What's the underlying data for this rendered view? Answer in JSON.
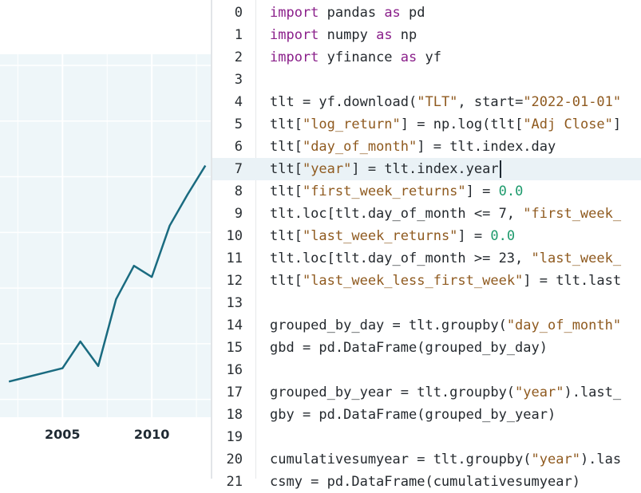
{
  "chart": {
    "x_tick_labels": [
      "2005",
      "2010"
    ],
    "line_color": "#1a6b80",
    "plot_background": "#eef6f9",
    "grid_color": "#ffffff",
    "chart_data": {
      "type": "line",
      "x": [
        2002,
        2003,
        2004,
        2005,
        2006,
        2007,
        2008,
        2009,
        2010,
        2011,
        2012,
        2013
      ],
      "series": [
        {
          "values": [
            0.08,
            0.1,
            0.12,
            0.14,
            0.26,
            0.15,
            0.45,
            0.6,
            0.55,
            0.78,
            0.92,
            1.05
          ]
        }
      ],
      "xlim": [
        2001.5,
        2013.3
      ],
      "ylim": [
        -0.08,
        1.55
      ],
      "grid": true
    }
  },
  "editor": {
    "active_line": 7,
    "lines": [
      {
        "number": "0",
        "tokens": [
          {
            "t": "import",
            "c": "kw"
          },
          {
            "t": " pandas ",
            "c": "plain"
          },
          {
            "t": "as",
            "c": "kw"
          },
          {
            "t": " pd",
            "c": "plain"
          }
        ]
      },
      {
        "number": "1",
        "tokens": [
          {
            "t": "import",
            "c": "kw"
          },
          {
            "t": " numpy ",
            "c": "plain"
          },
          {
            "t": "as",
            "c": "kw"
          },
          {
            "t": " np",
            "c": "plain"
          }
        ]
      },
      {
        "number": "2",
        "tokens": [
          {
            "t": "import",
            "c": "kw"
          },
          {
            "t": " yfinance ",
            "c": "plain"
          },
          {
            "t": "as",
            "c": "kw"
          },
          {
            "t": " yf",
            "c": "plain"
          }
        ]
      },
      {
        "number": "3",
        "tokens": []
      },
      {
        "number": "4",
        "tokens": [
          {
            "t": "tlt = yf.download(",
            "c": "plain"
          },
          {
            "t": "\"TLT\"",
            "c": "str"
          },
          {
            "t": ", start=",
            "c": "plain"
          },
          {
            "t": "\"2022-01-01\"",
            "c": "str"
          }
        ]
      },
      {
        "number": "5",
        "tokens": [
          {
            "t": "tlt[",
            "c": "plain"
          },
          {
            "t": "\"log_return\"",
            "c": "str"
          },
          {
            "t": "] = np.log(tlt[",
            "c": "plain"
          },
          {
            "t": "\"Adj Close\"",
            "c": "str"
          },
          {
            "t": "]",
            "c": "plain"
          }
        ]
      },
      {
        "number": "6",
        "tokens": [
          {
            "t": "tlt[",
            "c": "plain"
          },
          {
            "t": "\"day_of_month\"",
            "c": "str"
          },
          {
            "t": "] = tlt.index.day",
            "c": "plain"
          }
        ]
      },
      {
        "number": "7",
        "tokens": [
          {
            "t": "tlt[",
            "c": "plain"
          },
          {
            "t": "\"year\"",
            "c": "str"
          },
          {
            "t": "] = tlt.index.year",
            "c": "plain"
          }
        ],
        "cursor": true
      },
      {
        "number": "8",
        "tokens": [
          {
            "t": "tlt[",
            "c": "plain"
          },
          {
            "t": "\"first_week_returns\"",
            "c": "str"
          },
          {
            "t": "] = ",
            "c": "plain"
          },
          {
            "t": "0.0",
            "c": "num"
          }
        ]
      },
      {
        "number": "9",
        "tokens": [
          {
            "t": "tlt.loc[tlt.day_of_month <= 7, ",
            "c": "plain"
          },
          {
            "t": "\"first_week_",
            "c": "str"
          }
        ]
      },
      {
        "number": "10",
        "tokens": [
          {
            "t": "tlt[",
            "c": "plain"
          },
          {
            "t": "\"last_week_returns\"",
            "c": "str"
          },
          {
            "t": "] = ",
            "c": "plain"
          },
          {
            "t": "0.0",
            "c": "num"
          }
        ]
      },
      {
        "number": "11",
        "tokens": [
          {
            "t": "tlt.loc[tlt.day_of_month >= 23, ",
            "c": "plain"
          },
          {
            "t": "\"last_week_",
            "c": "str"
          }
        ]
      },
      {
        "number": "12",
        "tokens": [
          {
            "t": "tlt[",
            "c": "plain"
          },
          {
            "t": "\"last_week_less_first_week\"",
            "c": "str"
          },
          {
            "t": "] = tlt.last",
            "c": "plain"
          }
        ]
      },
      {
        "number": "13",
        "tokens": []
      },
      {
        "number": "14",
        "tokens": [
          {
            "t": "grouped_by_day = tlt.groupby(",
            "c": "plain"
          },
          {
            "t": "\"day_of_month\"",
            "c": "str"
          }
        ]
      },
      {
        "number": "15",
        "tokens": [
          {
            "t": "gbd = pd.DataFrame(grouped_by_day)",
            "c": "plain"
          }
        ]
      },
      {
        "number": "16",
        "tokens": []
      },
      {
        "number": "17",
        "tokens": [
          {
            "t": "grouped_by_year = tlt.groupby(",
            "c": "plain"
          },
          {
            "t": "\"year\"",
            "c": "str"
          },
          {
            "t": ").last_",
            "c": "plain"
          }
        ]
      },
      {
        "number": "18",
        "tokens": [
          {
            "t": "gby = pd.DataFrame(grouped_by_year)",
            "c": "plain"
          }
        ]
      },
      {
        "number": "19",
        "tokens": []
      },
      {
        "number": "20",
        "tokens": [
          {
            "t": "cumulativesumyear = tlt.groupby(",
            "c": "plain"
          },
          {
            "t": "\"year\"",
            "c": "str"
          },
          {
            "t": ").las",
            "c": "plain"
          }
        ]
      },
      {
        "number": "21",
        "tokens": [
          {
            "t": "csmy = pd.DataFrame(cumulativesumyear)",
            "c": "plain"
          }
        ]
      }
    ]
  }
}
